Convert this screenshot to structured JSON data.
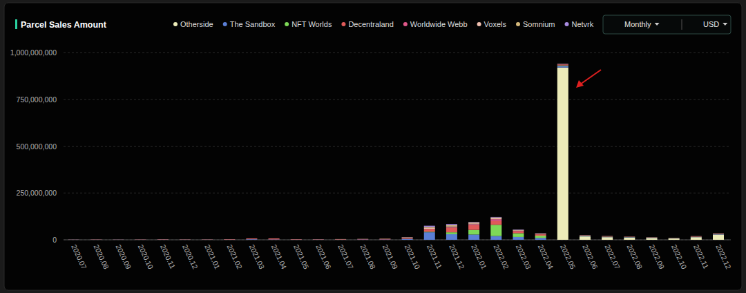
{
  "chart_data": {
    "type": "bar",
    "stacked": true,
    "title": "Parcel Sales Amount",
    "categories": [
      "2020.07",
      "2020.08",
      "2020.09",
      "2020.10",
      "2020.11",
      "2020.12",
      "2021.01",
      "2021.02",
      "2021.03",
      "2021.04",
      "2021.05",
      "2021.06",
      "2021.07",
      "2021.08",
      "2021.09",
      "2021.10",
      "2021.11",
      "2021.12",
      "2022.01",
      "2022.02",
      "2022.03",
      "2022.04",
      "2022.05",
      "2022.06",
      "2022.07",
      "2022.08",
      "2022.09",
      "2022.10",
      "2022.11",
      "2022.12"
    ],
    "series": [
      {
        "name": "Otherside",
        "color": "#ecebb8",
        "values": [
          0,
          0,
          0,
          0,
          0,
          0,
          0,
          0,
          0,
          0,
          0,
          0,
          0,
          0,
          0,
          0,
          0,
          0,
          0,
          0,
          0,
          0,
          920000000,
          18000000,
          14000000,
          12000000,
          10000000,
          7000000,
          14000000,
          28000000
        ]
      },
      {
        "name": "The Sandbox",
        "color": "#5b7fd6",
        "values": [
          500000,
          500000,
          500000,
          500000,
          1000000,
          500000,
          500000,
          1000000,
          3000000,
          2000000,
          1000000,
          1000000,
          1000000,
          2000000,
          2000000,
          5000000,
          40000000,
          30000000,
          28000000,
          20000000,
          15000000,
          10000000,
          8000000,
          3000000,
          2000000,
          2000000,
          1500000,
          1000000,
          2000000,
          3000000
        ]
      },
      {
        "name": "NFT Worlds",
        "color": "#7ed957",
        "values": [
          0,
          0,
          0,
          0,
          0,
          0,
          0,
          0,
          0,
          0,
          0,
          0,
          0,
          0,
          0,
          500000,
          3000000,
          10000000,
          25000000,
          60000000,
          20000000,
          12000000,
          3000000,
          1000000,
          1000000,
          500000,
          500000,
          500000,
          500000,
          500000
        ]
      },
      {
        "name": "Decentraland",
        "color": "#e05a5a",
        "values": [
          500000,
          1000000,
          500000,
          1000000,
          1500000,
          1000000,
          1000000,
          2000000,
          4000000,
          5000000,
          2000000,
          1500000,
          2000000,
          2000000,
          3000000,
          5000000,
          15000000,
          25000000,
          25000000,
          20000000,
          10000000,
          7000000,
          5000000,
          2000000,
          2000000,
          1500000,
          1000000,
          1000000,
          2000000,
          2000000
        ]
      },
      {
        "name": "Worldwide Webb",
        "color": "#e0588a",
        "values": [
          0,
          0,
          0,
          0,
          0,
          0,
          0,
          0,
          0,
          0,
          0,
          0,
          0,
          0,
          0,
          0,
          0,
          2000000,
          5000000,
          10000000,
          3000000,
          2000000,
          1000000,
          300000,
          300000,
          200000,
          200000,
          200000,
          200000,
          200000
        ]
      },
      {
        "name": "Voxels",
        "color": "#f0c0b0",
        "values": [
          300000,
          300000,
          300000,
          300000,
          500000,
          500000,
          500000,
          500000,
          500000,
          500000,
          500000,
          500000,
          500000,
          500000,
          500000,
          1000000,
          5000000,
          5000000,
          5000000,
          5000000,
          3000000,
          2000000,
          1000000,
          500000,
          500000,
          500000,
          500000,
          300000,
          300000,
          500000
        ]
      },
      {
        "name": "Somnium",
        "color": "#d4b87a",
        "values": [
          0,
          0,
          0,
          0,
          0,
          0,
          0,
          0,
          0,
          0,
          0,
          0,
          500000,
          500000,
          1000000,
          2000000,
          5000000,
          6000000,
          4000000,
          4000000,
          2000000,
          1000000,
          1000000,
          500000,
          500000,
          300000,
          300000,
          300000,
          500000,
          500000
        ]
      },
      {
        "name": "Netvrk",
        "color": "#a88be0",
        "values": [
          0,
          0,
          0,
          0,
          0,
          0,
          0,
          0,
          0,
          0,
          0,
          0,
          0,
          0,
          0,
          1000000,
          7000000,
          6000000,
          3000000,
          3000000,
          2000000,
          1000000,
          1000000,
          200000,
          200000,
          200000,
          200000,
          200000,
          200000,
          200000
        ]
      }
    ],
    "ylim": [
      0,
      1000000000
    ],
    "yticks": [
      {
        "value": 0,
        "label": "0"
      },
      {
        "value": 250000000,
        "label": "250,000,000"
      },
      {
        "value": 500000000,
        "label": "500,000,000"
      },
      {
        "value": 750000000,
        "label": "750,000,000"
      },
      {
        "value": 1000000000,
        "label": "1,000,000,000"
      }
    ],
    "grid": true,
    "legend": "top"
  },
  "controls": [
    "Monthly",
    "USD"
  ]
}
